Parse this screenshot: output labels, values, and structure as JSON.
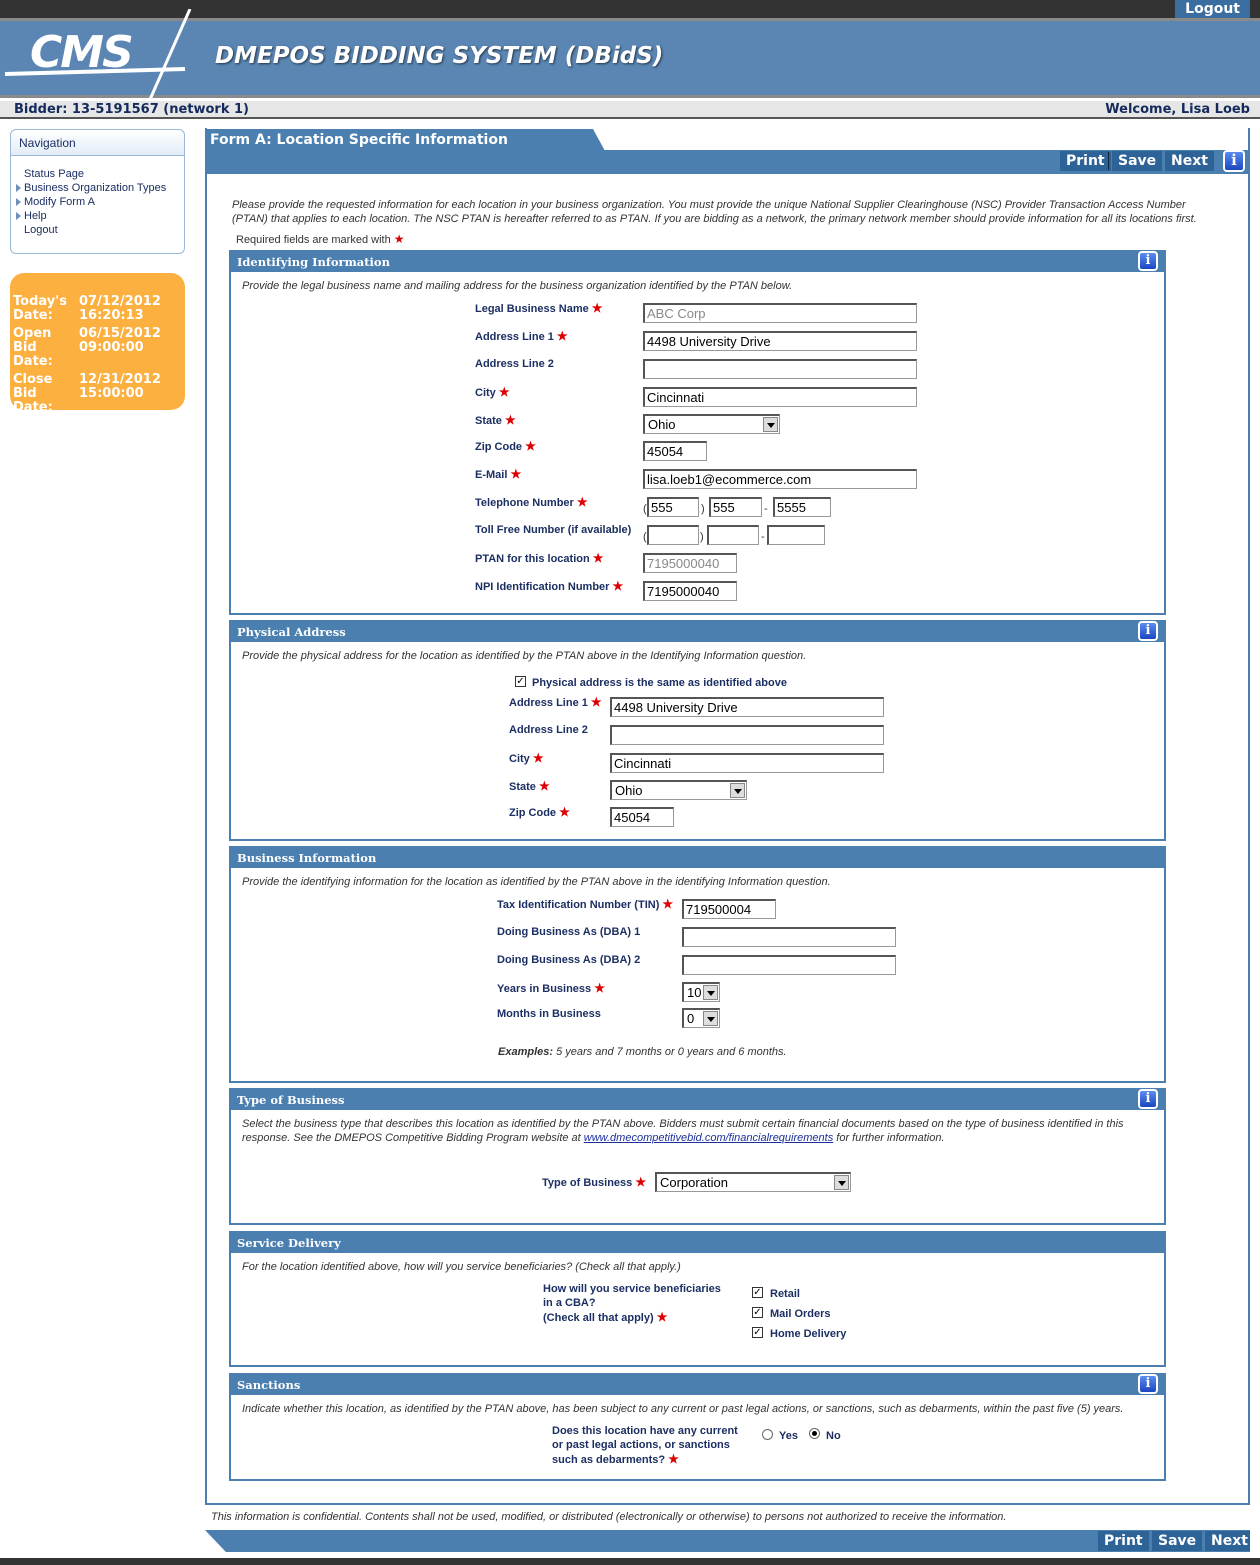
{
  "top": {
    "logout": "Logout"
  },
  "header": {
    "logo": "CMS",
    "title": "DMEPOS BIDDING SYSTEM (DBidS)"
  },
  "bidbar": {
    "bidder": "Bidder: 13-5191567 (network 1)",
    "welcome": "Welcome, Lisa Loeb"
  },
  "nav": {
    "title": "Navigation",
    "items": [
      "Status Page",
      "Business Organization Types",
      "Modify Form A",
      "Help",
      "Logout"
    ]
  },
  "dates": [
    {
      "k": "Today's Date:",
      "d": "07/12/2012",
      "t": "16:20:13"
    },
    {
      "k": "Open Bid Date:",
      "d": "06/15/2012",
      "t": "09:00:00"
    },
    {
      "k": "Close Bid Date:",
      "d": "12/31/2012",
      "t": "15:00:00"
    }
  ],
  "form": {
    "title": "Form A: Location Specific Information",
    "buttons": {
      "print": "Print",
      "save": "Save",
      "next": "Next"
    },
    "info": "i",
    "intro1": "Please provide the requested information for each location in your business organization. You must provide the unique National Supplier Clearinghouse (NSC) Provider Transaction Access Number",
    "intro2": "(PTAN) that applies to each location. The NSC PTAN is hereafter referred to as PTAN. If you are bidding as a network, the primary network member should provide information for all its locations first.",
    "required": "Required fields are marked with",
    "star": "★"
  },
  "ident": {
    "title": "Identifying Information",
    "desc": "Provide the legal business name and mailing address for the business organization identified by the PTAN below.",
    "labels": {
      "legal": "Legal Business Name",
      "addr1": "Address Line 1",
      "addr2": "Address Line 2",
      "city": "City",
      "state": "State",
      "zip": "Zip Code",
      "email": "E-Mail",
      "phone": "Telephone Number",
      "tollfree": "Toll Free Number (if available)",
      "ptan": "PTAN for this location",
      "npi": "NPI Identification Number"
    },
    "values": {
      "legal": "ABC Corp",
      "addr1": "4498 University Drive",
      "addr2": "",
      "city": "Cincinnati",
      "state": "Ohio",
      "zip": "45054",
      "email": "lisa.loeb1@ecommerce.com",
      "phone": [
        "555",
        "555",
        "5555"
      ],
      "tollfree": [
        "",
        "",
        ""
      ],
      "ptan": "7195000040",
      "npi": "7195000040"
    }
  },
  "phys": {
    "title": "Physical Address",
    "desc": "Provide the physical address for the location as identified by the PTAN above in the Identifying Information question.",
    "same_label": "Physical address is the same as identified above",
    "same_checked": true,
    "labels": {
      "addr1": "Address Line 1",
      "addr2": "Address Line 2",
      "city": "City",
      "state": "State",
      "zip": "Zip Code"
    },
    "values": {
      "addr1": "4498 University Drive",
      "addr2": "",
      "city": "Cincinnati",
      "state": "Ohio",
      "zip": "45054"
    }
  },
  "biz": {
    "title": "Business Information",
    "desc": "Provide the identifying information for the location as identified by the PTAN above in the identifying Information question.",
    "labels": {
      "tin": "Tax Identification Number (TIN)",
      "dba1": "Doing Business As (DBA) 1",
      "dba2": "Doing Business As (DBA) 2",
      "years": "Years in Business",
      "months": "Months in Business"
    },
    "values": {
      "tin": "719500004",
      "dba1": "",
      "dba2": "",
      "years": "10",
      "months": "0"
    },
    "examples_label": "Examples:",
    "examples": " 5 years and 7 months or 0 years and 6 months."
  },
  "type": {
    "title": "Type of Business",
    "desc1": "Select the business type that describes this location as identified by the PTAN above. Bidders must submit certain financial documents based on the type of business identified in this",
    "desc2a": "response. See the DMEPOS Competitive Bidding Program website at ",
    "link": "www.dmecompetitivebid.com/financialrequirements",
    "desc2b": " for further information.",
    "label": "Type of Business",
    "value": "Corporation"
  },
  "service": {
    "title": "Service Delivery",
    "desc": "For the location identified above, how will you service beneficiaries? (Check all that apply.)",
    "q1": "How will you service beneficiaries",
    "q2": "in a CBA?",
    "q3": "(Check all that apply)",
    "options": [
      {
        "label": "Retail",
        "checked": true
      },
      {
        "label": "Mail Orders",
        "checked": true
      },
      {
        "label": "Home Delivery",
        "checked": true
      }
    ]
  },
  "sanctions": {
    "title": "Sanctions",
    "desc": "Indicate whether this location, as identified by the PTAN above, has been subject to any current or past legal actions, or sanctions, such as debarments, within the past five (5) years.",
    "q1": "Does this location have any current",
    "q2": "or past legal actions, or sanctions",
    "q3": "such as debarments?",
    "yes": "Yes",
    "no": "No",
    "selected": "No"
  },
  "footer": {
    "text": "This information is confidential. Contents shall not be used, modified, or distributed (electronically or otherwise) to persons not authorized to receive the information."
  },
  "colors": {
    "header": "#5b86b3",
    "section": "#4a7fb0",
    "button": "#2e6398",
    "dates_bg": "#fbb040",
    "required": "#dd0000"
  }
}
